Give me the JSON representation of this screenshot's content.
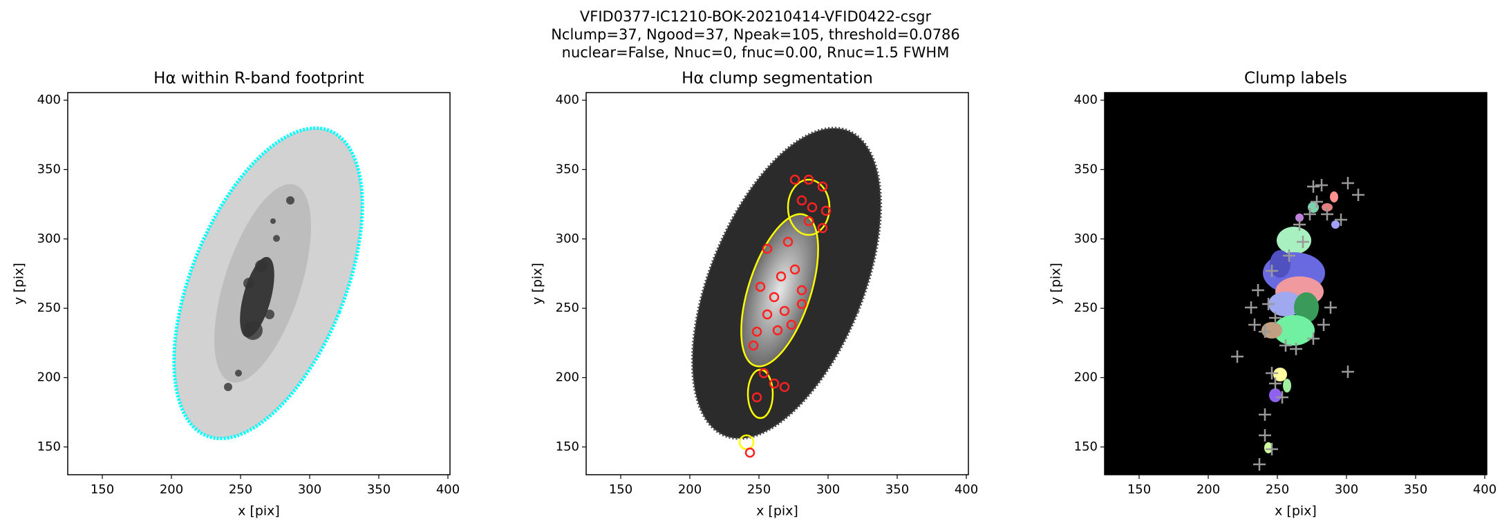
{
  "title_lines": [
    "VFID0377-IC1210-BOK-20210414-VFID0422-csgr",
    "Nclump=37, Ngood=37, Npeak=105, threshold=0.0786",
    "nuclear=False, Nnuc=0, fnuc=0.00, Rnuc=1.5 FWHM"
  ],
  "chart_data": [
    {
      "type": "image",
      "title": "Hα within R-band footprint",
      "x_label": "x [pix]",
      "y_label": "y [pix]",
      "xlim": [
        125,
        401.5
      ],
      "ylim": [
        130,
        405.5
      ],
      "xticks": [
        150,
        200,
        250,
        300,
        350,
        400
      ],
      "yticks": [
        150,
        200,
        250,
        300,
        350,
        400
      ]
    },
    {
      "type": "image",
      "title": "Hα clump segmentation",
      "x_label": "x [pix]",
      "y_label": "y [pix]",
      "xlim": [
        125,
        401.5
      ],
      "ylim": [
        130,
        405.5
      ],
      "xticks": [
        150,
        200,
        250,
        300,
        350,
        400
      ],
      "yticks": [
        150,
        200,
        250,
        300,
        350,
        400
      ]
    },
    {
      "type": "image",
      "title": "Clump labels",
      "x_label": "x [pix]",
      "y_label": "y [pix]",
      "xlim": [
        125,
        401.5
      ],
      "ylim": [
        130,
        405.5
      ],
      "xticks": [
        150,
        200,
        250,
        300,
        350,
        400
      ],
      "yticks": [
        150,
        200,
        250,
        300,
        350,
        400
      ]
    }
  ]
}
